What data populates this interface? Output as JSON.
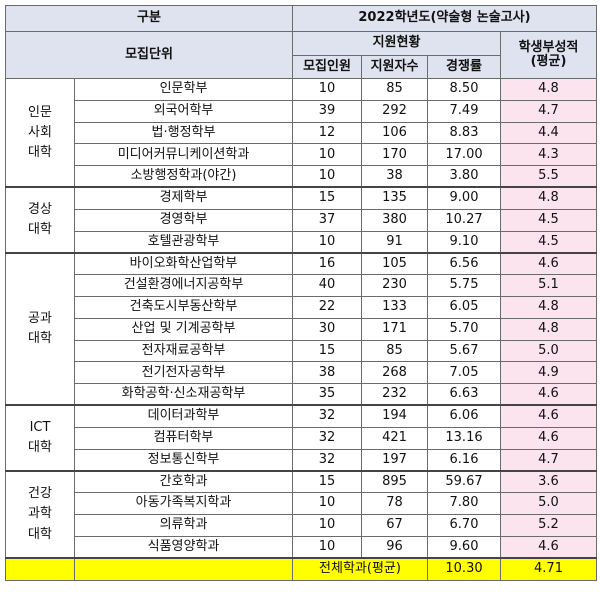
{
  "header": {
    "gubun": "구분",
    "year_title": "2022학년도(약술형 논술고사)",
    "unit": "모집단위",
    "applicant_status": "지원현황",
    "student_record_l1": "학생부성적",
    "student_record_l2": "(평균)",
    "quota": "모집인원",
    "applicants": "지원자수",
    "ratio": "경쟁률"
  },
  "colleges": [
    {
      "name_lines": [
        "인문",
        "사회",
        "대학"
      ],
      "rows": [
        {
          "dept": "인문학부",
          "quota": "10",
          "applicants": "85",
          "ratio": "8.50",
          "score": "4.8"
        },
        {
          "dept": "외국어학부",
          "quota": "39",
          "applicants": "292",
          "ratio": "7.49",
          "score": "4.7"
        },
        {
          "dept": "법·행정학부",
          "quota": "12",
          "applicants": "106",
          "ratio": "8.83",
          "score": "4.4"
        },
        {
          "dept": "미디어커뮤니케이션학과",
          "quota": "10",
          "applicants": "170",
          "ratio": "17.00",
          "score": "4.3"
        },
        {
          "dept": "소방행정학과(야간)",
          "quota": "10",
          "applicants": "38",
          "ratio": "3.80",
          "score": "5.5"
        }
      ]
    },
    {
      "name_lines": [
        "경상",
        "대학"
      ],
      "rows": [
        {
          "dept": "경제학부",
          "quota": "15",
          "applicants": "135",
          "ratio": "9.00",
          "score": "4.8"
        },
        {
          "dept": "경영학부",
          "quota": "37",
          "applicants": "380",
          "ratio": "10.27",
          "score": "4.5"
        },
        {
          "dept": "호텔관광학부",
          "quota": "10",
          "applicants": "91",
          "ratio": "9.10",
          "score": "4.5"
        }
      ]
    },
    {
      "name_lines": [
        "공과",
        "대학"
      ],
      "rows": [
        {
          "dept": "바이오화학산업학부",
          "quota": "16",
          "applicants": "105",
          "ratio": "6.56",
          "score": "4.6"
        },
        {
          "dept": "건설환경에너지공학부",
          "quota": "40",
          "applicants": "230",
          "ratio": "5.75",
          "score": "5.1"
        },
        {
          "dept": "건축도시부동산학부",
          "quota": "22",
          "applicants": "133",
          "ratio": "6.05",
          "score": "4.8"
        },
        {
          "dept": "산업 및 기계공학부",
          "quota": "30",
          "applicants": "171",
          "ratio": "5.70",
          "score": "4.8"
        },
        {
          "dept": "전자재료공학부",
          "quota": "15",
          "applicants": "85",
          "ratio": "5.67",
          "score": "5.0"
        },
        {
          "dept": "전기전자공학부",
          "quota": "38",
          "applicants": "268",
          "ratio": "7.05",
          "score": "4.9"
        },
        {
          "dept": "화학공학·신소재공학부",
          "quota": "35",
          "applicants": "232",
          "ratio": "6.63",
          "score": "4.6"
        }
      ]
    },
    {
      "name_lines": [
        "ICT",
        "대학"
      ],
      "rows": [
        {
          "dept": "데이터과학부",
          "quota": "32",
          "applicants": "194",
          "ratio": "6.06",
          "score": "4.6"
        },
        {
          "dept": "컴퓨터학부",
          "quota": "32",
          "applicants": "421",
          "ratio": "13.16",
          "score": "4.6"
        },
        {
          "dept": "정보통신학부",
          "quota": "32",
          "applicants": "197",
          "ratio": "6.16",
          "score": "4.7"
        }
      ]
    },
    {
      "name_lines": [
        "건강",
        "과학",
        "대학"
      ],
      "rows": [
        {
          "dept": "간호학과",
          "quota": "15",
          "applicants": "895",
          "ratio": "59.67",
          "score": "3.6"
        },
        {
          "dept": "아동가족복지학과",
          "quota": "10",
          "applicants": "78",
          "ratio": "7.80",
          "score": "5.0"
        },
        {
          "dept": "의류학과",
          "quota": "10",
          "applicants": "67",
          "ratio": "6.70",
          "score": "5.2"
        },
        {
          "dept": "식품영양학과",
          "quota": "10",
          "applicants": "96",
          "ratio": "9.60",
          "score": "4.6"
        }
      ]
    }
  ],
  "total": {
    "label": "전체학과(평균)",
    "ratio": "10.30",
    "score": "4.71"
  }
}
